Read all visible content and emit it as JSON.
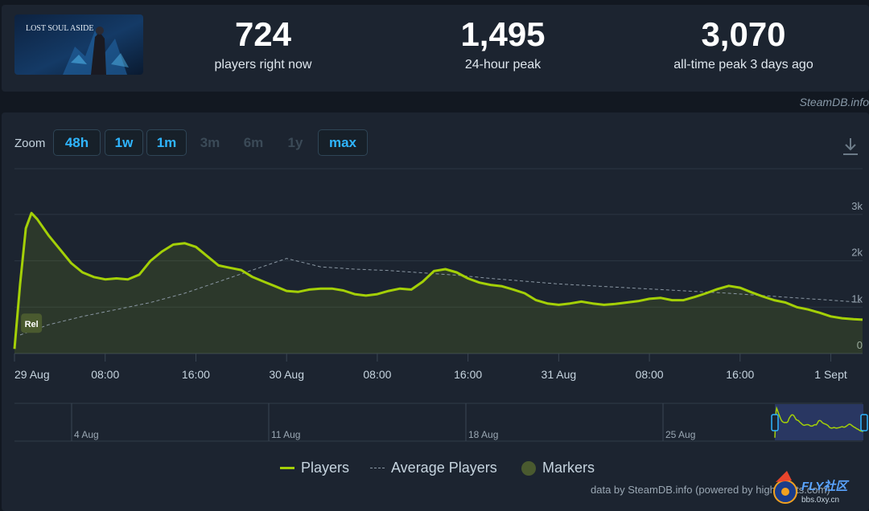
{
  "game": {
    "art_title": "LOST SOUL ASIDE"
  },
  "stats": {
    "current": {
      "value": "724",
      "label": "players right now"
    },
    "peak24": {
      "value": "1,495",
      "label": "24-hour peak"
    },
    "alltime": {
      "value": "3,070",
      "label": "all-time peak 3 days ago"
    }
  },
  "source_top": "SteamDB.info",
  "zoom": {
    "label": "Zoom",
    "buttons": [
      {
        "label": "48h",
        "enabled": true
      },
      {
        "label": "1w",
        "enabled": true
      },
      {
        "label": "1m",
        "enabled": true
      },
      {
        "label": "3m",
        "enabled": false
      },
      {
        "label": "6m",
        "enabled": false
      },
      {
        "label": "1y",
        "enabled": false
      },
      {
        "label": "max",
        "enabled": true
      }
    ]
  },
  "navigator": {
    "labels": [
      "4 Aug",
      "11 Aug",
      "18 Aug",
      "25 Aug"
    ]
  },
  "legend": {
    "players": "Players",
    "average": "Average Players",
    "markers": "Markers"
  },
  "credit": "data by SteamDB.info (powered by highcharts.com)",
  "watermark": {
    "title": "FLY社区",
    "url": "bbs.0xy.cn"
  },
  "colors": {
    "players": "#a4d007",
    "average": "#8a97a3",
    "accent": "#2fb5ff"
  },
  "chart_data": {
    "type": "line",
    "x_unit": "hours since 29 Aug 00:00",
    "xticks": [
      {
        "t": 0,
        "label": "29 Aug"
      },
      {
        "t": 8,
        "label": "08:00"
      },
      {
        "t": 16,
        "label": "16:00"
      },
      {
        "t": 24,
        "label": "30 Aug"
      },
      {
        "t": 32,
        "label": "08:00"
      },
      {
        "t": 40,
        "label": "16:00"
      },
      {
        "t": 48,
        "label": "31 Aug"
      },
      {
        "t": 56,
        "label": "08:00"
      },
      {
        "t": 64,
        "label": "16:00"
      },
      {
        "t": 72,
        "label": "1 Sept"
      }
    ],
    "yticks": [
      {
        "v": 0,
        "label": "0"
      },
      {
        "v": 1000,
        "label": "1k"
      },
      {
        "v": 2000,
        "label": "2k"
      },
      {
        "v": 3000,
        "label": "3k"
      }
    ],
    "ylim": [
      0,
      3200
    ],
    "xlim": [
      0,
      74.8
    ],
    "marker": {
      "t": 1.5,
      "v": 620,
      "label": "Rel"
    },
    "series": [
      {
        "name": "Players",
        "x": [
          0,
          0.5,
          1,
          1.5,
          2,
          3,
          4,
          5,
          6,
          7,
          8,
          9,
          10,
          11,
          12,
          13,
          14,
          15,
          16,
          17,
          18,
          19,
          20,
          21,
          22,
          23,
          24,
          25,
          26,
          27,
          28,
          29,
          30,
          31,
          32,
          33,
          34,
          35,
          36,
          37,
          38,
          39,
          40,
          41,
          42,
          43,
          44,
          45,
          46,
          47,
          48,
          49,
          50,
          51,
          52,
          53,
          54,
          55,
          56,
          57,
          58,
          59,
          60,
          61,
          62,
          63,
          64,
          65,
          66,
          67,
          68,
          69,
          70,
          71,
          72,
          73,
          74,
          74.8
        ],
        "values": [
          100,
          1500,
          2700,
          3030,
          2900,
          2550,
          2250,
          1950,
          1750,
          1650,
          1600,
          1620,
          1600,
          1700,
          2000,
          2200,
          2350,
          2380,
          2300,
          2100,
          1900,
          1850,
          1800,
          1650,
          1550,
          1450,
          1350,
          1330,
          1380,
          1400,
          1400,
          1360,
          1280,
          1250,
          1280,
          1350,
          1400,
          1380,
          1550,
          1780,
          1820,
          1750,
          1620,
          1530,
          1480,
          1450,
          1380,
          1300,
          1150,
          1080,
          1050,
          1080,
          1120,
          1080,
          1050,
          1070,
          1100,
          1130,
          1180,
          1200,
          1150,
          1150,
          1220,
          1300,
          1390,
          1460,
          1420,
          1320,
          1230,
          1150,
          1100,
          1000,
          950,
          880,
          800,
          760,
          740,
          730
        ]
      },
      {
        "name": "Average Players",
        "x": [
          0.5,
          3,
          6,
          9,
          12,
          15,
          18,
          21,
          24,
          27,
          30,
          33,
          36,
          39,
          42,
          45,
          48,
          51,
          54,
          57,
          60,
          63,
          66,
          69,
          72,
          74.8
        ],
        "values": [
          400,
          620,
          800,
          950,
          1100,
          1300,
          1550,
          1800,
          2050,
          1870,
          1820,
          1790,
          1740,
          1690,
          1620,
          1560,
          1500,
          1460,
          1420,
          1380,
          1340,
          1300,
          1250,
          1200,
          1150,
          1100
        ]
      }
    ]
  }
}
